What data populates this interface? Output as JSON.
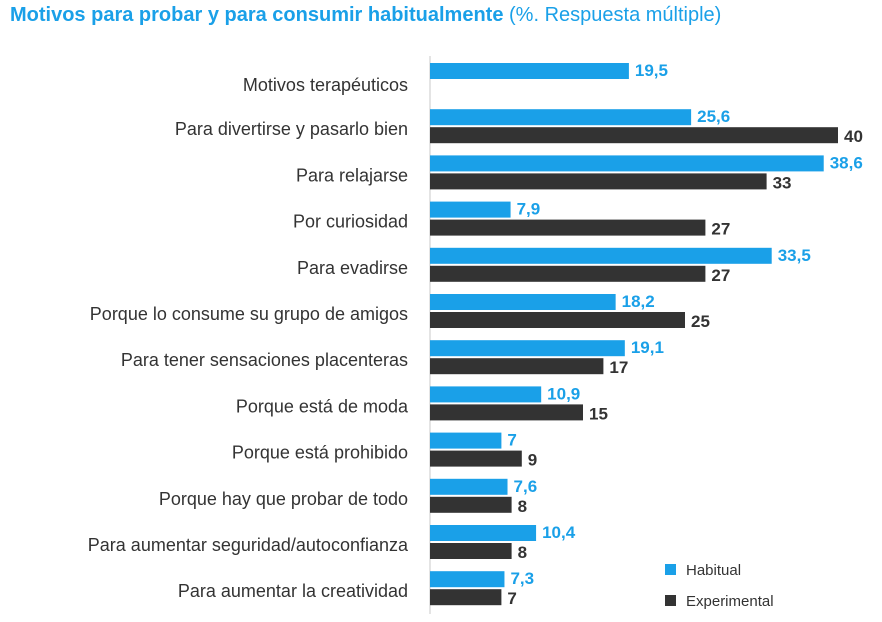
{
  "chart_data": {
    "type": "bar",
    "orientation": "horizontal",
    "title": "Motivos para probar y para consumir habitualmente",
    "subtitle": "(%. Respuesta múltiple)",
    "categories": [
      "Motivos terapéuticos",
      "Para divertirse y pasarlo bien",
      "Para relajarse",
      "Por curiosidad",
      "Para evadirse",
      "Porque lo consume su grupo de amigos",
      "Para tener sensaciones placenteras",
      "Porque está de moda",
      "Porque está prohibido",
      "Porque hay que probar de todo",
      "Para aumentar seguridad/autoconfianza",
      "Para aumentar la creatividad"
    ],
    "series": [
      {
        "name": "Habitual",
        "color": "#1aa0e8",
        "values": [
          19.5,
          25.6,
          38.6,
          7.9,
          33.5,
          18.2,
          19.1,
          10.9,
          7,
          7.6,
          10.4,
          7.3
        ],
        "labels": [
          "19,5",
          "25,6",
          "38,6",
          "7,9",
          "33,5",
          "18,2",
          "19,1",
          "10,9",
          "7",
          "7,6",
          "10,4",
          "7,3"
        ]
      },
      {
        "name": "Experimental",
        "color": "#333333",
        "values": [
          null,
          40,
          33,
          27,
          27,
          25,
          17,
          15,
          9,
          8,
          8,
          7
        ],
        "labels": [
          "",
          "40",
          "33",
          "27",
          "27",
          "25",
          "17",
          "15",
          "9",
          "8",
          "8",
          "7"
        ]
      }
    ],
    "xlim": [
      0,
      40
    ],
    "grid": false,
    "legend_position": "bottom-right"
  }
}
